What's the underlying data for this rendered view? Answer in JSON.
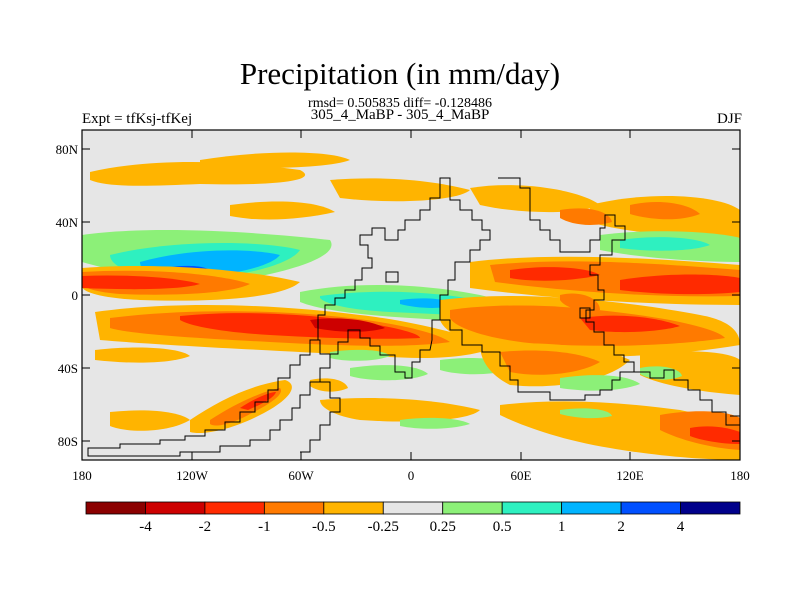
{
  "title": "Precipitation (in mm/day)",
  "stats_line": "rmsd= 0.505835 diff= -0.128486",
  "models_line": "305_4_MaBP - 305_4_MaBP",
  "experiment_label": "Expt = tfKsj-tfKej",
  "season_label": "DJF",
  "latitude_ticks": [
    "80N",
    "40N",
    "0",
    "40S",
    "80S"
  ],
  "longitude_ticks": [
    "180",
    "120W",
    "60W",
    "0",
    "60E",
    "120E",
    "180"
  ],
  "colorbar": {
    "colors": [
      "#8b0000",
      "#cd0000",
      "#ff2a00",
      "#ff7a00",
      "#ffb400",
      "#e6e6e6",
      "#8cf078",
      "#2ef0c0",
      "#00b4ff",
      "#0050ff",
      "#00008b"
    ],
    "labels": [
      "-4",
      "-2",
      "-1",
      "-0.5",
      "-0.25",
      "0.25",
      "0.5",
      "1",
      "2",
      "4"
    ]
  },
  "field_colors": {
    "neutral": "#e6e6e6",
    "weak_dry": "#ffb400",
    "dry": "#ff7a00",
    "strong_dry": "#ff2a00",
    "very_dry": "#cd0000",
    "weak_wet": "#8cf078",
    "wet": "#2ef0c0",
    "strong_wet": "#00b4ff",
    "very_wet": "#0050ff"
  }
}
